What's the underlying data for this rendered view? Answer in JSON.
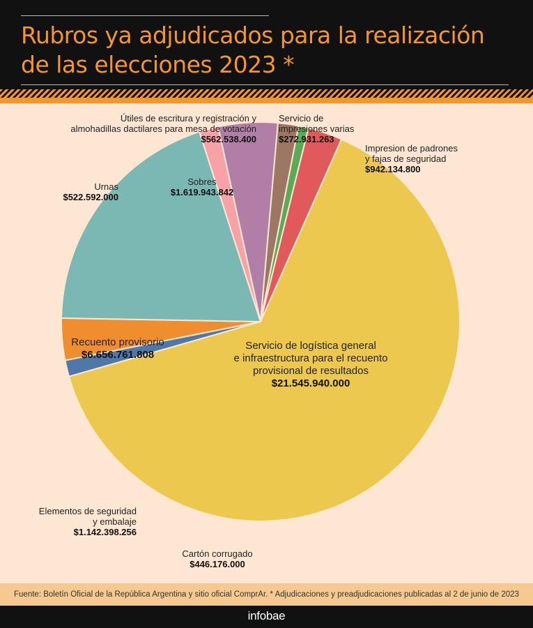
{
  "title": "Rubros ya adjudicados para la realización de las elecciones 2023 *",
  "source": "Fuente: Boletín Oficial de la República Argentina y sitio oficial ComprAr. * Adjudicaciones y preadjudicaciones publicadas al 2 de junio de 2023",
  "brand": "infobae",
  "chart_data": {
    "type": "pie",
    "title": "Rubros ya adjudicados para la realización de las elecciones 2023 *",
    "slices": [
      {
        "name": "Servicio de impresiones varias",
        "lines": [
          "Servicio de",
          "impresiones varias"
        ],
        "label": "$272.931.263",
        "value": 272931263,
        "color": "#5aaa56"
      },
      {
        "name": "Impresion de padrones y fajas de seguridad",
        "lines": [
          "Impresion de padrones",
          "y fajas de seguridad"
        ],
        "label": "$942.134.800",
        "value": 942134800,
        "color": "#e05a5c"
      },
      {
        "name": "Servicio de logística general e infraestructura para el recuento provisional de resultados",
        "lines": [
          "Servicio de logística general",
          "e infraestructura para el recuento",
          "provisional de resultados"
        ],
        "label": "$21.545.940.000",
        "value": 21545940000,
        "color": "#ecc94e"
      },
      {
        "name": "Cartón corrugado",
        "lines": [
          "Cartón corrugado"
        ],
        "label": "$446.176.000",
        "value": 446176000,
        "color": "#4f78a8"
      },
      {
        "name": "Elementos de seguridad y embalaje",
        "lines": [
          "Elementos de seguridad",
          "y embalaje"
        ],
        "label": "$1.142.398.256",
        "value": 1142398256,
        "color": "#f08d2f"
      },
      {
        "name": "Recuento provisorio",
        "lines": [
          "Recuento provisorio"
        ],
        "label": "$6.656.761.808",
        "value": 6656761808,
        "color": "#7bb8b3"
      },
      {
        "name": "Urnas",
        "lines": [
          "Urnas"
        ],
        "label": "$522.592.000",
        "value": 522592000,
        "color": "#f7a2a7"
      },
      {
        "name": "Sobres",
        "lines": [
          "Sobres"
        ],
        "label": "$1.619.943.842",
        "value": 1619943842,
        "color": "#b07ea6"
      },
      {
        "name": "Útiles de escritura y registración y almohadillas dactilares para mesa de votación",
        "lines": [
          "Útiles de escritura y registración y",
          "almohadillas dactilares para mesa de votación"
        ],
        "label": "$562.538.400",
        "value": 562538400,
        "color": "#9c7763"
      }
    ]
  }
}
